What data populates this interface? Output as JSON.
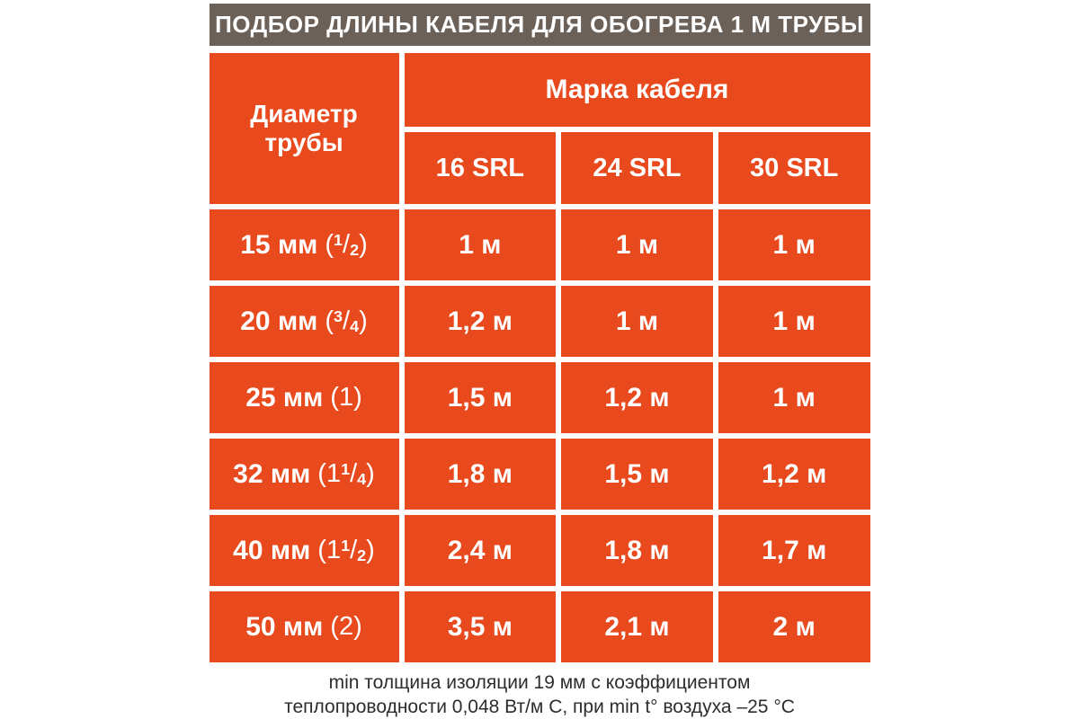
{
  "title": "ПОДБОР ДЛИНЫ КАБЕЛЯ ДЛЯ ОБОГРЕВА 1 М ТРУБЫ",
  "colors": {
    "cell_orange": "#e8491d",
    "title_bar": "#6b6159",
    "text_white": "#ffffff",
    "footnote_text": "#2d2d2d",
    "background": "#ffffff"
  },
  "table": {
    "diameter_header": "Диаметр трубы",
    "group_header": "Марка кабеля",
    "models": [
      "16 SRL",
      "24 SRL",
      "30 SRL"
    ],
    "punct": {
      "open": "(",
      "close": ")"
    },
    "rows": [
      {
        "size": "15 мм",
        "inch_whole": "",
        "inch_num": "1",
        "inch_slash": "/",
        "inch_den": "2",
        "values": [
          "1 м",
          "1 м",
          "1 м"
        ]
      },
      {
        "size": "20 мм",
        "inch_whole": "",
        "inch_num": "3",
        "inch_slash": "/",
        "inch_den": "4",
        "values": [
          "1,2 м",
          "1 м",
          "1 м"
        ]
      },
      {
        "size": "25 мм",
        "inch_whole": "1",
        "inch_num": "",
        "inch_slash": "",
        "inch_den": "",
        "values": [
          "1,5 м",
          "1,2 м",
          "1 м"
        ]
      },
      {
        "size": "32 мм",
        "inch_whole": "1",
        "inch_num": "1",
        "inch_slash": "/",
        "inch_den": "4",
        "values": [
          "1,8 м",
          "1,5 м",
          "1,2 м"
        ]
      },
      {
        "size": "40 мм",
        "inch_whole": "1",
        "inch_num": "1",
        "inch_slash": "/",
        "inch_den": "2",
        "values": [
          "2,4 м",
          "1,8 м",
          "1,7 м"
        ]
      },
      {
        "size": "50 мм",
        "inch_whole": "2",
        "inch_num": "",
        "inch_slash": "",
        "inch_den": "",
        "values": [
          "3,5 м",
          "2,1 м",
          "2 м"
        ]
      }
    ]
  },
  "footnote": {
    "line1": "min толщина изоляции 19 мм с коэффициентом",
    "line2": "теплопроводности 0,048 Вт/м С, при min t° воздуха –25 °C"
  },
  "chart_data": {
    "type": "table",
    "title": "ПОДБОР ДЛИНЫ КАБЕЛЯ ДЛЯ ОБОГРЕВА 1 М ТРУБЫ",
    "column_group": "Марка кабеля",
    "columns": [
      "Диаметр трубы",
      "16 SRL",
      "24 SRL",
      "30 SRL"
    ],
    "rows": [
      [
        "15 мм (1/2)",
        "1 м",
        "1 м",
        "1 м"
      ],
      [
        "20 мм (3/4)",
        "1,2 м",
        "1 м",
        "1 м"
      ],
      [
        "25 мм (1)",
        "1,5 м",
        "1,2 м",
        "1 м"
      ],
      [
        "32 мм (1 1/4)",
        "1,8 м",
        "1,5 м",
        "1,2 м"
      ],
      [
        "40 мм (1 1/2)",
        "2,4 м",
        "1,8 м",
        "1,7 м"
      ],
      [
        "50 мм (2)",
        "3,5 м",
        "2,1 м",
        "2 м"
      ]
    ],
    "footnote": "min толщина изоляции 19 мм с коэффициентом теплопроводности 0,048 Вт/м С, при min t° воздуха –25 °C"
  }
}
